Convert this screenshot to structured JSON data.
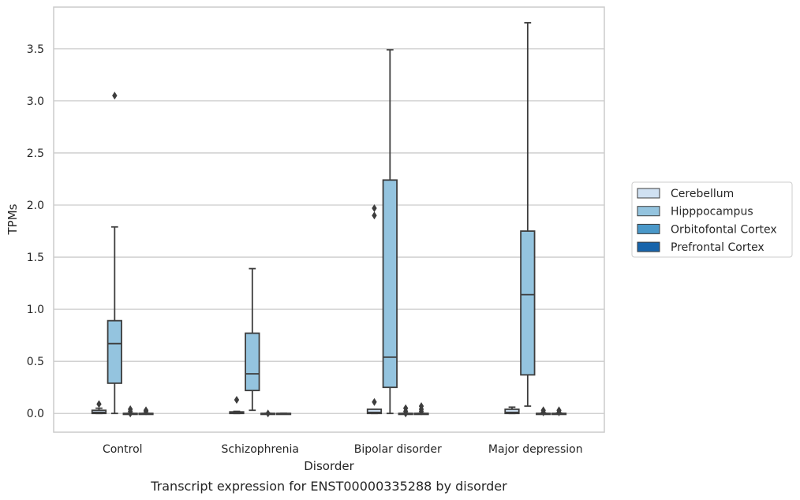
{
  "chart_data": {
    "type": "box",
    "caption": "Transcript expression for ENST00000335288 by disorder",
    "xlabel": "Disorder",
    "ylabel": "TPMs",
    "ylim": [
      -0.18,
      3.9
    ],
    "yticks": [
      "0.0",
      "0.5",
      "1.0",
      "1.5",
      "2.0",
      "2.5",
      "3.0",
      "3.5"
    ],
    "categories": [
      "Control",
      "Schizophrenia",
      "Bipolar disorder",
      "Major depression"
    ],
    "grid": "horizontal",
    "legend_placement": "right",
    "series": [
      {
        "name": "Cerebellum",
        "color": "#d0e1f2",
        "boxes": [
          {
            "q1": 0.0,
            "median": 0.01,
            "q3": 0.03,
            "whisker_low": 0.0,
            "whisker_high": 0.05,
            "outliers": [
              0.09
            ]
          },
          {
            "q1": 0.0,
            "median": 0.005,
            "q3": 0.015,
            "whisker_low": 0.0,
            "whisker_high": 0.02,
            "outliers": [
              0.13
            ]
          },
          {
            "q1": 0.0,
            "median": 0.01,
            "q3": 0.04,
            "whisker_low": 0.0,
            "whisker_high": 0.04,
            "outliers": [
              1.9,
              1.97,
              0.11
            ]
          },
          {
            "q1": 0.0,
            "median": 0.01,
            "q3": 0.04,
            "whisker_low": 0.0,
            "whisker_high": 0.06,
            "outliers": []
          }
        ]
      },
      {
        "name": "Hipppocampus",
        "color": "#94c4df",
        "boxes": [
          {
            "q1": 0.29,
            "median": 0.67,
            "q3": 0.89,
            "whisker_low": 0.0,
            "whisker_high": 1.79,
            "outliers": [
              3.05
            ]
          },
          {
            "q1": 0.22,
            "median": 0.38,
            "q3": 0.77,
            "whisker_low": 0.03,
            "whisker_high": 1.39,
            "outliers": []
          },
          {
            "q1": 0.25,
            "median": 0.54,
            "q3": 2.24,
            "whisker_low": 0.0,
            "whisker_high": 3.49,
            "outliers": []
          },
          {
            "q1": 0.37,
            "median": 1.14,
            "q3": 1.75,
            "whisker_low": 0.07,
            "whisker_high": 3.75,
            "outliers": []
          }
        ]
      },
      {
        "name": "Orbitofontal Cortex",
        "color": "#4a98c9",
        "boxes": [
          {
            "q1": 0.0,
            "median": 0.0,
            "q3": 0.0,
            "whisker_low": 0.0,
            "whisker_high": 0.0,
            "outliers": [
              0.0,
              0.02,
              0.04
            ]
          },
          {
            "q1": 0.0,
            "median": 0.0,
            "q3": 0.0,
            "whisker_low": 0.0,
            "whisker_high": 0.0,
            "outliers": [
              0.0
            ]
          },
          {
            "q1": 0.0,
            "median": 0.0,
            "q3": 0.0,
            "whisker_low": 0.0,
            "whisker_high": 0.0,
            "outliers": [
              0.0,
              0.02,
              0.05
            ]
          },
          {
            "q1": 0.0,
            "median": 0.0,
            "q3": 0.0,
            "whisker_low": 0.0,
            "whisker_high": 0.0,
            "outliers": [
              0.01,
              0.03
            ]
          }
        ]
      },
      {
        "name": "Prefrontal Cortex",
        "color": "#1764ab",
        "boxes": [
          {
            "q1": 0.0,
            "median": 0.0,
            "q3": 0.0,
            "whisker_low": 0.0,
            "whisker_high": 0.0,
            "outliers": [
              0.02,
              0.03
            ]
          },
          {
            "q1": 0.0,
            "median": 0.0,
            "q3": 0.0,
            "whisker_low": 0.0,
            "whisker_high": 0.0,
            "outliers": []
          },
          {
            "q1": 0.0,
            "median": 0.0,
            "q3": 0.0,
            "whisker_low": 0.0,
            "whisker_high": 0.0,
            "outliers": [
              0.02,
              0.04,
              0.07
            ]
          },
          {
            "q1": 0.0,
            "median": 0.0,
            "q3": 0.0,
            "whisker_low": 0.0,
            "whisker_high": 0.0,
            "outliers": [
              0.01,
              0.03
            ]
          }
        ]
      }
    ]
  }
}
